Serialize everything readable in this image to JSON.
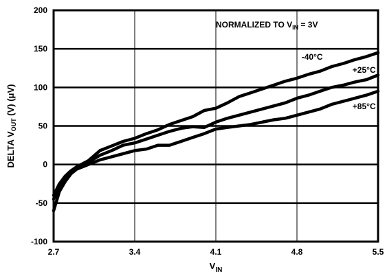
{
  "chart_data": {
    "type": "line",
    "xlabel_main": "V",
    "xlabel_sub": "IN",
    "ylabel_parts": [
      "DELTA V",
      "OUT",
      " (V) (μV)"
    ],
    "annotation_parts": [
      "NORMALIZED TO V",
      "IN",
      " = 3V"
    ],
    "xlim": [
      2.7,
      5.5
    ],
    "ylim": [
      -100,
      200
    ],
    "x_ticks": [
      2.7,
      3.4,
      4.1,
      4.8,
      5.5
    ],
    "x_tick_labels": [
      "2.7",
      "3.4",
      "4.1",
      "4.8",
      "5.5"
    ],
    "y_ticks": [
      -100,
      -50,
      0,
      50,
      100,
      150,
      200
    ],
    "y_tick_labels": [
      "-100",
      "-50",
      "0",
      "50",
      "100",
      "150",
      "200"
    ],
    "grid": true,
    "series": [
      {
        "name": "-40°C",
        "x": [
          2.7,
          2.75,
          2.8,
          2.85,
          2.9,
          3.0,
          3.1,
          3.2,
          3.3,
          3.4,
          3.5,
          3.6,
          3.7,
          3.8,
          3.9,
          4.0,
          4.1,
          4.2,
          4.3,
          4.4,
          4.5,
          4.6,
          4.7,
          4.8,
          4.9,
          5.0,
          5.1,
          5.2,
          5.3,
          5.4,
          5.5
        ],
        "y": [
          -40,
          -25,
          -15,
          -8,
          -3,
          5,
          18,
          24,
          30,
          34,
          40,
          45,
          52,
          57,
          62,
          70,
          73,
          80,
          88,
          93,
          98,
          103,
          108,
          112,
          117,
          121,
          127,
          131,
          136,
          140,
          145
        ]
      },
      {
        "name": "+25°C",
        "x": [
          2.7,
          2.75,
          2.8,
          2.85,
          2.9,
          3.0,
          3.1,
          3.2,
          3.3,
          3.4,
          3.5,
          3.6,
          3.7,
          3.8,
          3.9,
          4.0,
          4.1,
          4.2,
          4.3,
          4.4,
          4.5,
          4.6,
          4.7,
          4.8,
          4.9,
          5.0,
          5.1,
          5.2,
          5.3,
          5.4,
          5.5
        ],
        "y": [
          -45,
          -30,
          -18,
          -10,
          -5,
          3,
          12,
          18,
          25,
          28,
          33,
          38,
          43,
          47,
          49,
          48,
          55,
          60,
          64,
          68,
          72,
          76,
          80,
          86,
          90,
          95,
          100,
          103,
          107,
          110,
          116
        ]
      },
      {
        "name": "+85°C",
        "x": [
          2.7,
          2.75,
          2.8,
          2.85,
          2.9,
          3.0,
          3.1,
          3.2,
          3.3,
          3.4,
          3.5,
          3.6,
          3.7,
          3.8,
          3.9,
          4.0,
          4.1,
          4.2,
          4.3,
          4.4,
          4.5,
          4.6,
          4.7,
          4.8,
          4.9,
          5.0,
          5.1,
          5.2,
          5.3,
          5.4,
          5.5
        ],
        "y": [
          -60,
          -35,
          -22,
          -12,
          -6,
          0,
          6,
          10,
          14,
          18,
          20,
          25,
          25,
          30,
          35,
          40,
          46,
          48,
          50,
          52,
          55,
          58,
          60,
          64,
          68,
          72,
          78,
          82,
          86,
          90,
          95
        ]
      }
    ]
  }
}
